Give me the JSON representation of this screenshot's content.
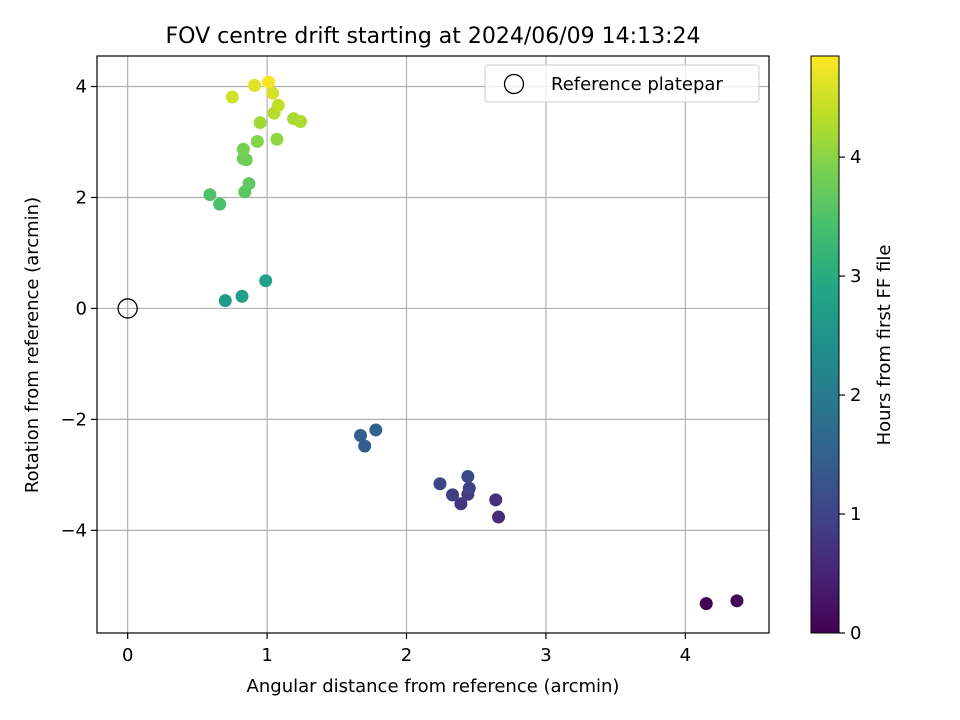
{
  "chart_data": {
    "type": "scatter",
    "title": "FOV centre drift starting at 2024/06/09 14:13:24",
    "xlabel": "Angular distance from reference (arcmin)",
    "ylabel": "Rotation from reference (arcmin)",
    "xlim": [
      -0.22,
      4.6
    ],
    "ylim": [
      -5.85,
      4.55
    ],
    "xticks": [
      0,
      1,
      2,
      3,
      4
    ],
    "xtick_labels": [
      "0",
      "1",
      "2",
      "3",
      "4"
    ],
    "yticks": [
      -4,
      -2,
      0,
      2,
      4
    ],
    "ytick_labels": [
      "−4",
      "−2",
      "0",
      "2",
      "4"
    ],
    "grid": true,
    "legend": {
      "position": "top-right",
      "entries": [
        "Reference platepar"
      ]
    },
    "reference_point": {
      "x": 0,
      "y": 0,
      "marker": "open-circle"
    },
    "colorbar": {
      "label": "Hours from first FF file",
      "range": [
        0,
        4.85
      ],
      "ticks": [
        0,
        1,
        2,
        3,
        4
      ],
      "tick_labels": [
        "0",
        "1",
        "2",
        "3",
        "4"
      ],
      "colormap": "viridis"
    },
    "points": [
      {
        "x": 4.15,
        "y": -5.32,
        "hours": 0.0
      },
      {
        "x": 4.37,
        "y": -5.27,
        "hours": 0.08
      },
      {
        "x": 2.66,
        "y": -3.76,
        "hours": 0.6
      },
      {
        "x": 2.64,
        "y": -3.45,
        "hours": 0.7
      },
      {
        "x": 2.39,
        "y": -3.52,
        "hours": 0.78
      },
      {
        "x": 2.44,
        "y": -3.35,
        "hours": 0.85
      },
      {
        "x": 2.33,
        "y": -3.36,
        "hours": 0.9
      },
      {
        "x": 2.45,
        "y": -3.24,
        "hours": 0.95
      },
      {
        "x": 2.24,
        "y": -3.16,
        "hours": 1.0
      },
      {
        "x": 2.44,
        "y": -3.03,
        "hours": 1.05
      },
      {
        "x": 1.7,
        "y": -2.48,
        "hours": 1.45
      },
      {
        "x": 1.67,
        "y": -2.29,
        "hours": 1.5
      },
      {
        "x": 1.78,
        "y": -2.19,
        "hours": 1.55
      },
      {
        "x": 0.7,
        "y": 0.14,
        "hours": 2.7
      },
      {
        "x": 0.82,
        "y": 0.22,
        "hours": 2.75
      },
      {
        "x": 0.99,
        "y": 0.5,
        "hours": 2.8
      },
      {
        "x": 0.66,
        "y": 1.88,
        "hours": 3.45
      },
      {
        "x": 0.59,
        "y": 2.05,
        "hours": 3.5
      },
      {
        "x": 0.84,
        "y": 2.1,
        "hours": 3.6
      },
      {
        "x": 0.87,
        "y": 2.25,
        "hours": 3.65
      },
      {
        "x": 0.83,
        "y": 2.7,
        "hours": 3.75
      },
      {
        "x": 0.85,
        "y": 2.68,
        "hours": 3.8
      },
      {
        "x": 0.83,
        "y": 2.87,
        "hours": 3.85
      },
      {
        "x": 0.93,
        "y": 3.01,
        "hours": 3.95
      },
      {
        "x": 1.07,
        "y": 3.05,
        "hours": 4.05
      },
      {
        "x": 0.95,
        "y": 3.35,
        "hours": 4.15
      },
      {
        "x": 1.19,
        "y": 3.42,
        "hours": 4.2
      },
      {
        "x": 1.24,
        "y": 3.37,
        "hours": 4.25
      },
      {
        "x": 1.05,
        "y": 3.52,
        "hours": 4.3
      },
      {
        "x": 1.08,
        "y": 3.66,
        "hours": 4.4
      },
      {
        "x": 0.75,
        "y": 3.81,
        "hours": 4.5
      },
      {
        "x": 1.04,
        "y": 3.88,
        "hours": 4.55
      },
      {
        "x": 0.91,
        "y": 4.02,
        "hours": 4.65
      },
      {
        "x": 1.01,
        "y": 4.08,
        "hours": 4.8
      }
    ],
    "colors": {
      "background": "#ffffff",
      "grid": "#b0b0b0",
      "axes": "#000000"
    }
  }
}
